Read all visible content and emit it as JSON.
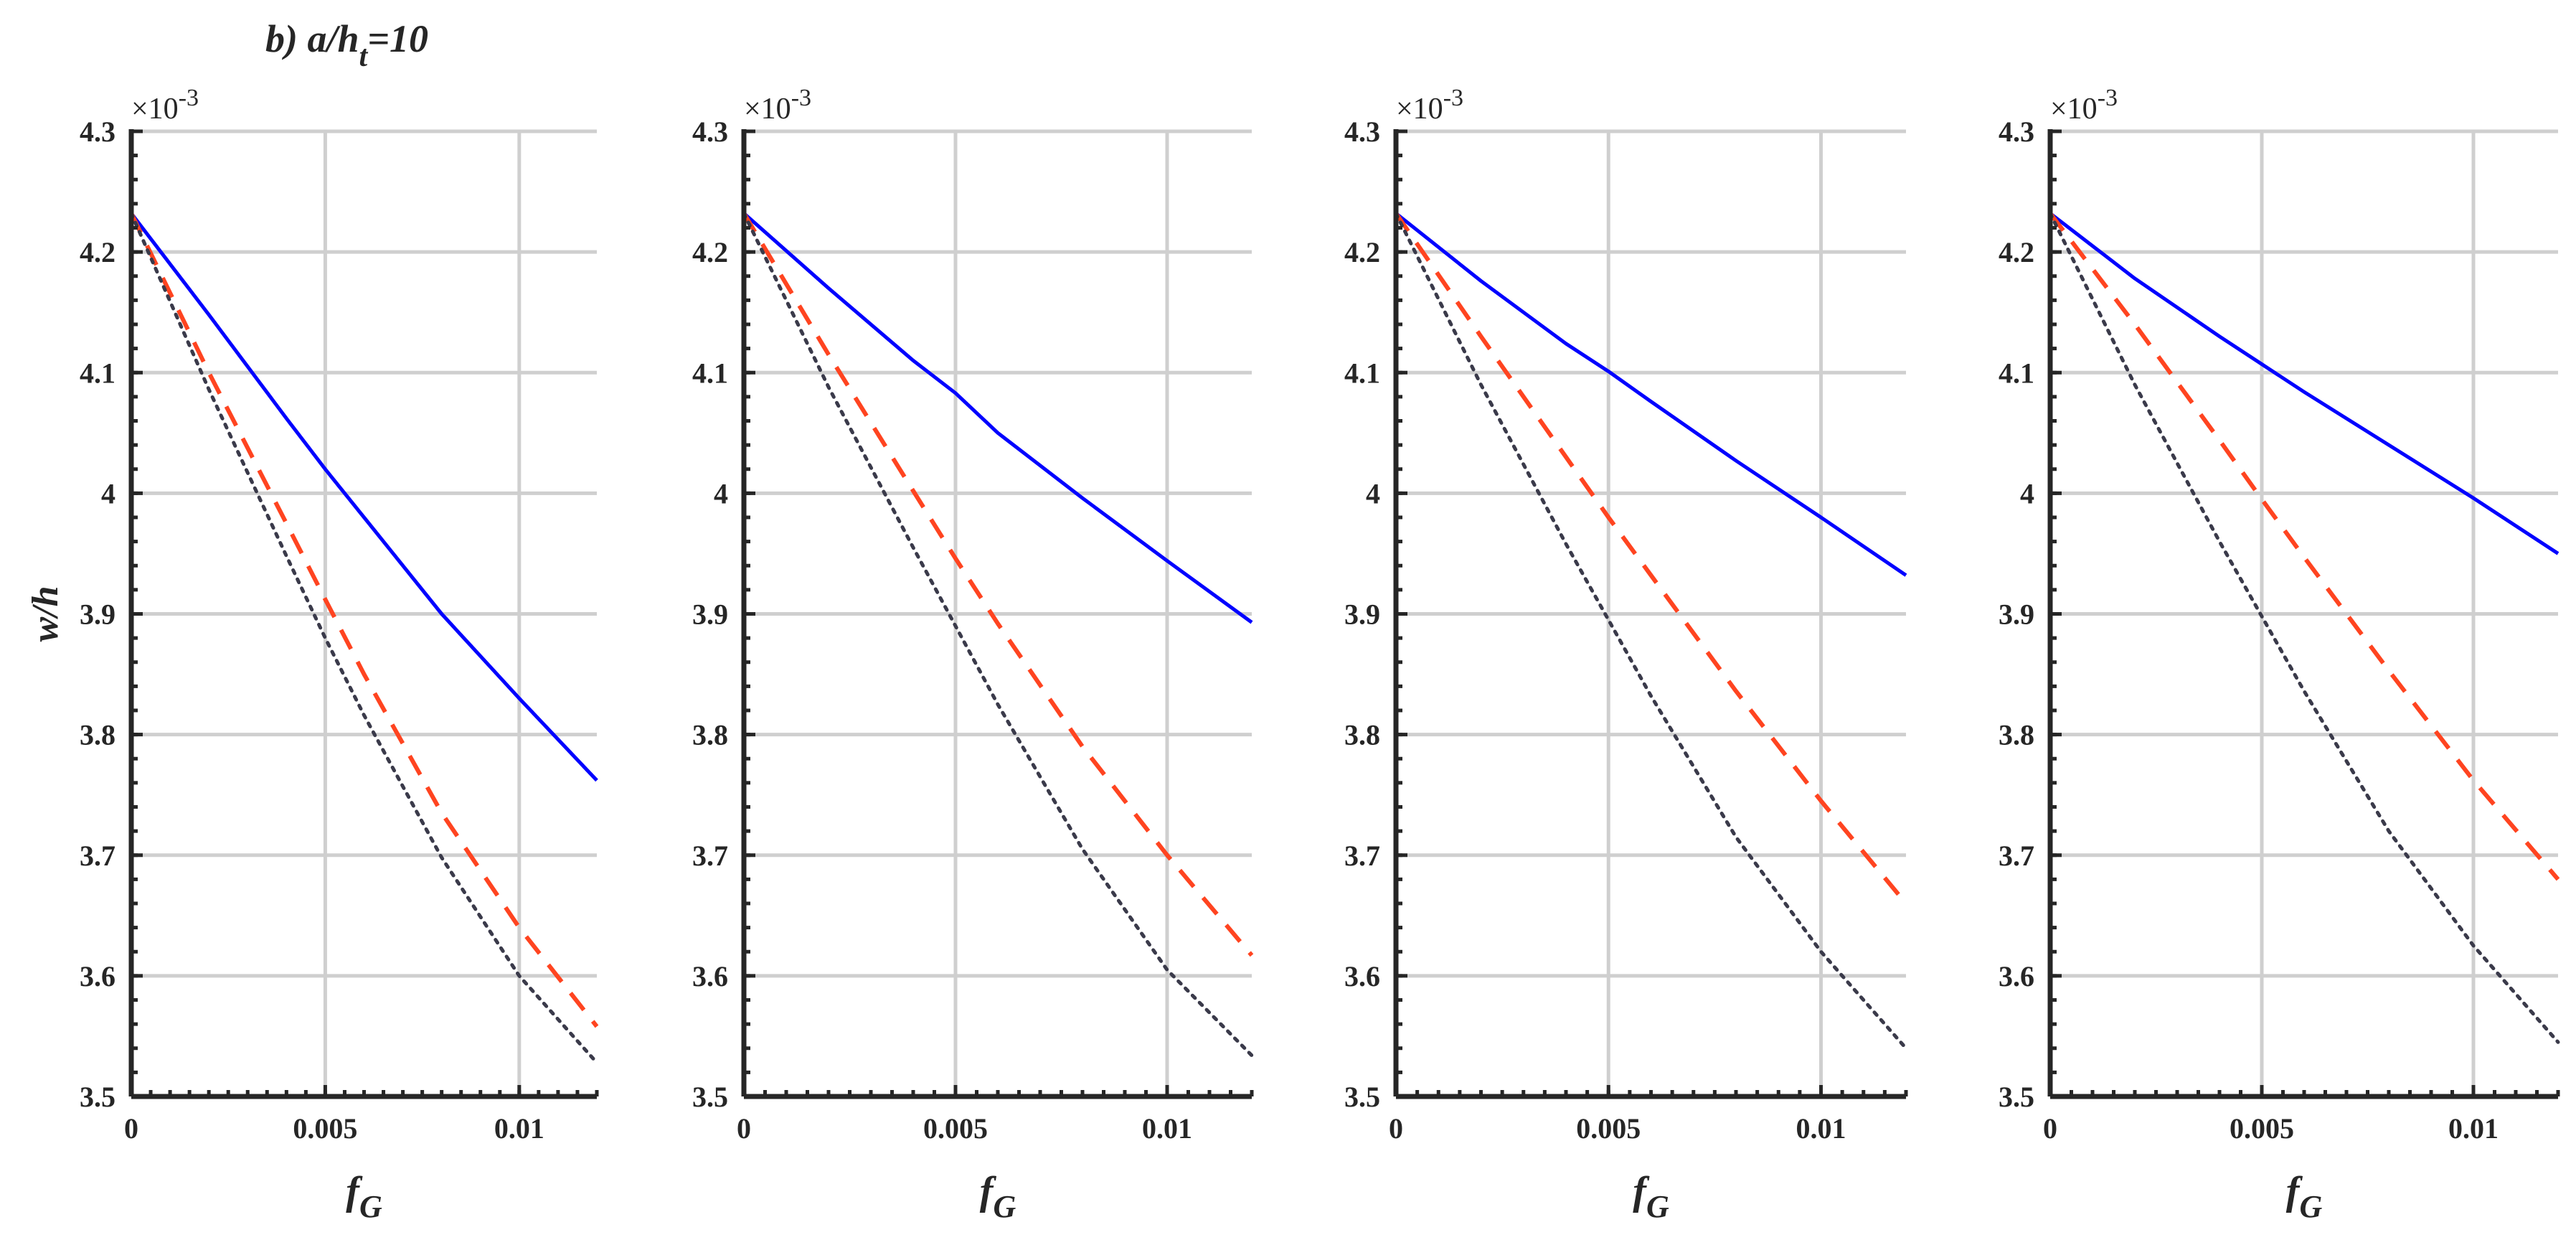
{
  "figure": {
    "panel_label": "b) a/h",
    "panel_label_sub": "t",
    "panel_label_tail": "=10"
  },
  "chart_data": [
    {
      "type": "line",
      "xlabel": "f",
      "xlabel_sub": "G",
      "ylabel": "w/h",
      "y_exponent": "-3",
      "xlim": [
        0,
        0.012
      ],
      "ylim": [
        3.5,
        4.3
      ],
      "x_ticks": [
        0,
        0.005,
        0.01
      ],
      "x_tick_labels": [
        "0",
        "0.005",
        "0.01"
      ],
      "y_ticks": [
        3.5,
        3.6,
        3.7,
        3.8,
        3.9,
        4.0,
        4.1,
        4.2,
        4.3
      ],
      "y_tick_labels": [
        "3.5",
        "3.6",
        "3.7",
        "3.8",
        "3.9",
        "4",
        "4.1",
        "4.2",
        "4.3"
      ],
      "grid": true,
      "series": [
        {
          "style": "solid",
          "color": "#0000ff",
          "x": [
            0,
            0.002,
            0.004,
            0.005,
            0.006,
            0.008,
            0.01,
            0.012
          ],
          "y": [
            4.232,
            4.148,
            4.062,
            4.02,
            3.98,
            3.9,
            3.83,
            3.762
          ]
        },
        {
          "style": "dashed",
          "color": "#ff4420",
          "x": [
            0,
            0.002,
            0.004,
            0.005,
            0.006,
            0.008,
            0.01,
            0.012
          ],
          "y": [
            4.232,
            4.1,
            3.975,
            3.912,
            3.85,
            3.735,
            3.64,
            3.558
          ]
        },
        {
          "style": "dotted",
          "color": "#3a3a4a",
          "x": [
            0,
            0.002,
            0.004,
            0.005,
            0.006,
            0.008,
            0.01,
            0.012
          ],
          "y": [
            4.232,
            4.086,
            3.948,
            3.88,
            3.816,
            3.698,
            3.6,
            3.528
          ]
        }
      ]
    },
    {
      "type": "line",
      "xlabel": "f",
      "xlabel_sub": "G",
      "ylabel": "",
      "y_exponent": "-3",
      "xlim": [
        0,
        0.012
      ],
      "ylim": [
        3.5,
        4.3
      ],
      "x_ticks": [
        0,
        0.005,
        0.01
      ],
      "x_tick_labels": [
        "0",
        "0.005",
        "0.01"
      ],
      "y_ticks": [
        3.5,
        3.6,
        3.7,
        3.8,
        3.9,
        4.0,
        4.1,
        4.2,
        4.3
      ],
      "y_tick_labels": [
        "3.5",
        "3.6",
        "3.7",
        "3.8",
        "3.9",
        "4",
        "4.1",
        "4.2",
        "4.3"
      ],
      "grid": true,
      "series": [
        {
          "style": "solid",
          "color": "#0000ff",
          "x": [
            0,
            0.002,
            0.004,
            0.005,
            0.006,
            0.008,
            0.01,
            0.012
          ],
          "y": [
            4.232,
            4.17,
            4.11,
            4.083,
            4.05,
            3.996,
            3.944,
            3.893
          ]
        },
        {
          "style": "dashed",
          "color": "#ff4420",
          "x": [
            0,
            0.002,
            0.004,
            0.005,
            0.006,
            0.008,
            0.01,
            0.012
          ],
          "y": [
            4.232,
            4.115,
            4.002,
            3.946,
            3.892,
            3.79,
            3.7,
            3.617
          ]
        },
        {
          "style": "dotted",
          "color": "#3a3a4a",
          "x": [
            0,
            0.002,
            0.004,
            0.005,
            0.006,
            0.008,
            0.01,
            0.012
          ],
          "y": [
            4.232,
            4.088,
            3.955,
            3.89,
            3.825,
            3.705,
            3.605,
            3.534
          ]
        }
      ]
    },
    {
      "type": "line",
      "xlabel": "f",
      "xlabel_sub": "G",
      "ylabel": "",
      "y_exponent": "-3",
      "xlim": [
        0,
        0.012
      ],
      "ylim": [
        3.5,
        4.3
      ],
      "x_ticks": [
        0,
        0.005,
        0.01
      ],
      "x_tick_labels": [
        "0",
        "0.005",
        "0.01"
      ],
      "y_ticks": [
        3.5,
        3.6,
        3.7,
        3.8,
        3.9,
        4.0,
        4.1,
        4.2,
        4.3
      ],
      "y_tick_labels": [
        "3.5",
        "3.6",
        "3.7",
        "3.8",
        "3.9",
        "4",
        "4.1",
        "4.2",
        "4.3"
      ],
      "grid": true,
      "series": [
        {
          "style": "solid",
          "color": "#0000ff",
          "x": [
            0,
            0.002,
            0.004,
            0.005,
            0.006,
            0.008,
            0.01,
            0.012
          ],
          "y": [
            4.232,
            4.176,
            4.124,
            4.101,
            4.076,
            4.027,
            3.98,
            3.932
          ]
        },
        {
          "style": "dashed",
          "color": "#ff4420",
          "x": [
            0,
            0.002,
            0.004,
            0.005,
            0.006,
            0.008,
            0.01,
            0.012
          ],
          "y": [
            4.232,
            4.13,
            4.03,
            3.98,
            3.932,
            3.836,
            3.745,
            3.66
          ]
        },
        {
          "style": "dotted",
          "color": "#3a3a4a",
          "x": [
            0,
            0.002,
            0.004,
            0.005,
            0.006,
            0.008,
            0.01,
            0.012
          ],
          "y": [
            4.232,
            4.09,
            3.958,
            3.895,
            3.832,
            3.715,
            3.62,
            3.54
          ]
        }
      ]
    },
    {
      "type": "line",
      "xlabel": "f",
      "xlabel_sub": "G",
      "ylabel": "",
      "y_exponent": "-3",
      "xlim": [
        0,
        0.012
      ],
      "ylim": [
        3.5,
        4.3
      ],
      "x_ticks": [
        0,
        0.005,
        0.01
      ],
      "x_tick_labels": [
        "0",
        "0.005",
        "0.01"
      ],
      "y_ticks": [
        3.5,
        3.6,
        3.7,
        3.8,
        3.9,
        4.0,
        4.1,
        4.2,
        4.3
      ],
      "y_tick_labels": [
        "3.5",
        "3.6",
        "3.7",
        "3.8",
        "3.9",
        "4",
        "4.1",
        "4.2",
        "4.3"
      ],
      "grid": true,
      "series": [
        {
          "style": "solid",
          "color": "#0000ff",
          "x": [
            0,
            0.002,
            0.004,
            0.005,
            0.006,
            0.008,
            0.01,
            0.012
          ],
          "y": [
            4.232,
            4.178,
            4.13,
            4.107,
            4.084,
            4.04,
            3.996,
            3.95
          ]
        },
        {
          "style": "dashed",
          "color": "#ff4420",
          "x": [
            0,
            0.002,
            0.004,
            0.005,
            0.006,
            0.008,
            0.01,
            0.012
          ],
          "y": [
            4.232,
            4.14,
            4.044,
            3.995,
            3.947,
            3.853,
            3.762,
            3.68
          ]
        },
        {
          "style": "dotted",
          "color": "#3a3a4a",
          "x": [
            0,
            0.002,
            0.004,
            0.005,
            0.006,
            0.008,
            0.01,
            0.012
          ],
          "y": [
            4.232,
            4.09,
            3.96,
            3.898,
            3.836,
            3.72,
            3.625,
            3.545
          ]
        }
      ]
    }
  ]
}
